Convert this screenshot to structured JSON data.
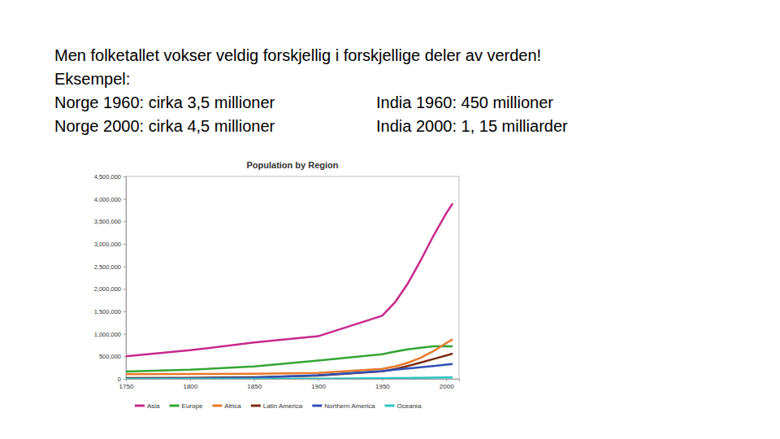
{
  "slide": {
    "heading": "Men folketallet vokser veldig forskjellig i forskjellige deler av verden!",
    "subheading": "Eksempel:",
    "left": [
      "Norge 1960: cirka 3,5 millioner",
      "Norge 2000: cirka 4,5 millioner"
    ],
    "right": [
      "India 1960: 450 millioner",
      "India 2000: 1, 15 milliarder"
    ]
  },
  "chart_data": {
    "type": "line",
    "title": "Population by Region",
    "x": [
      1750,
      1800,
      1850,
      1900,
      1950,
      1960,
      1970,
      1980,
      1990,
      2000,
      2005
    ],
    "series": [
      {
        "name": "Asia",
        "color": "#c8288c",
        "values": [
          502000,
          635000,
          809000,
          947000,
          1402000,
          1700000,
          2120000,
          2630000,
          3180000,
          3680000,
          3900000
        ]
      },
      {
        "name": "Europe",
        "color": "#33a532",
        "values": [
          163000,
          203000,
          276000,
          408000,
          547000,
          605000,
          656000,
          692000,
          721000,
          728000,
          725000
        ]
      },
      {
        "name": "Africa",
        "color": "#e8782a",
        "values": [
          106000,
          107000,
          111000,
          133000,
          221000,
          277000,
          357000,
          467000,
          615000,
          796000,
          880000
        ]
      },
      {
        "name": "Latin America",
        "color": "#7a2c12",
        "values": [
          16000,
          24000,
          38000,
          74000,
          167000,
          218000,
          285000,
          361000,
          441000,
          520000,
          560000
        ]
      },
      {
        "name": "Northern America",
        "color": "#3050b8",
        "values": [
          2000,
          7000,
          26000,
          82000,
          172000,
          204000,
          232000,
          256000,
          283000,
          316000,
          330000
        ]
      },
      {
        "name": "Oceania",
        "color": "#2ec4c4",
        "values": [
          2000,
          2000,
          2000,
          6000,
          13000,
          16000,
          19000,
          23000,
          27000,
          31000,
          33000
        ]
      }
    ],
    "xlim": [
      1750,
      2010
    ],
    "xticks": [
      1750,
      1800,
      1850,
      1900,
      1950,
      2000
    ],
    "ylim": [
      0,
      4500000
    ],
    "yticks": [
      0,
      {
        "value": 500000,
        "label": "500,000"
      },
      {
        "value": 1000000,
        "label": "1,000,000"
      },
      {
        "value": 1500000,
        "label": "1,500,000"
      },
      {
        "value": 2000000,
        "label": "2,000,000"
      },
      {
        "value": 2500000,
        "label": "2,500,000"
      },
      {
        "value": 3000000,
        "label": "3,000,000"
      },
      {
        "value": 3500000,
        "label": "3,500,000"
      },
      {
        "value": 4000000,
        "label": "4,000,000"
      },
      {
        "value": 4500000,
        "label": "4,500,000"
      }
    ],
    "legend": "bottom"
  }
}
